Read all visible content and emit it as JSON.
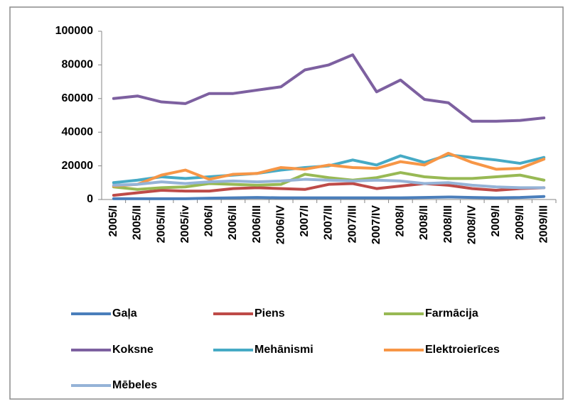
{
  "chart_data": {
    "type": "line",
    "categories": [
      "2005/I",
      "2005/II",
      "2005/III",
      "2005/iv",
      "2006/I",
      "2006/II",
      "2006/III",
      "2006/IV",
      "2007/I",
      "2007/II",
      "2007/III",
      "2007/IV",
      "2008/I",
      "2008/II",
      "2008/III",
      "2008/IV",
      "2009/I",
      "2009/II",
      "2009/III"
    ],
    "series": [
      {
        "name": "Gaļa",
        "color": "#4a7ebb",
        "values": [
          500,
          500,
          500,
          500,
          800,
          1000,
          1200,
          1000,
          1000,
          1000,
          1000,
          1000,
          1000,
          1200,
          1500,
          1200,
          1000,
          1200,
          1800
        ]
      },
      {
        "name": "Piens",
        "color": "#be4b48",
        "values": [
          2500,
          4000,
          5500,
          5000,
          5000,
          6500,
          7000,
          6500,
          6000,
          9000,
          9500,
          6500,
          8000,
          9500,
          8500,
          6500,
          5500,
          6500,
          7000
        ]
      },
      {
        "name": "Farmācija",
        "color": "#98b954",
        "values": [
          7500,
          6000,
          7000,
          7500,
          9500,
          9000,
          8500,
          9000,
          15000,
          13000,
          11500,
          13000,
          16000,
          13500,
          12500,
          12500,
          13500,
          14500,
          11500
        ]
      },
      {
        "name": "Koksne",
        "color": "#7d60a0",
        "values": [
          60000,
          61500,
          58000,
          57000,
          63000,
          63000,
          65000,
          67000,
          77000,
          80000,
          86000,
          64000,
          71000,
          59500,
          57500,
          46500,
          46500,
          47000,
          48500
        ]
      },
      {
        "name": "Mehānismi",
        "color": "#46aac5",
        "values": [
          10000,
          11500,
          13500,
          12500,
          13500,
          14500,
          15500,
          17500,
          19000,
          20000,
          23500,
          20500,
          26000,
          22000,
          26500,
          25000,
          23500,
          21500,
          25000
        ]
      },
      {
        "name": "Elektroierīces",
        "color": "#f79646",
        "values": [
          8000,
          9000,
          14500,
          17500,
          12000,
          15000,
          15500,
          19000,
          18000,
          20500,
          19000,
          18500,
          22500,
          20500,
          27500,
          22000,
          18000,
          18500,
          24000
        ]
      },
      {
        "name": "Mēbeles",
        "color": "#95b3d7",
        "values": [
          8500,
          9000,
          10500,
          9500,
          10500,
          11000,
          10500,
          11000,
          12000,
          11500,
          11000,
          11500,
          11000,
          9500,
          10000,
          8500,
          7500,
          7000,
          7000
        ]
      }
    ],
    "ylim": [
      0,
      100000
    ],
    "yticks": [
      0,
      20000,
      40000,
      60000,
      80000,
      100000
    ],
    "grid": false,
    "legend": "bottom"
  }
}
